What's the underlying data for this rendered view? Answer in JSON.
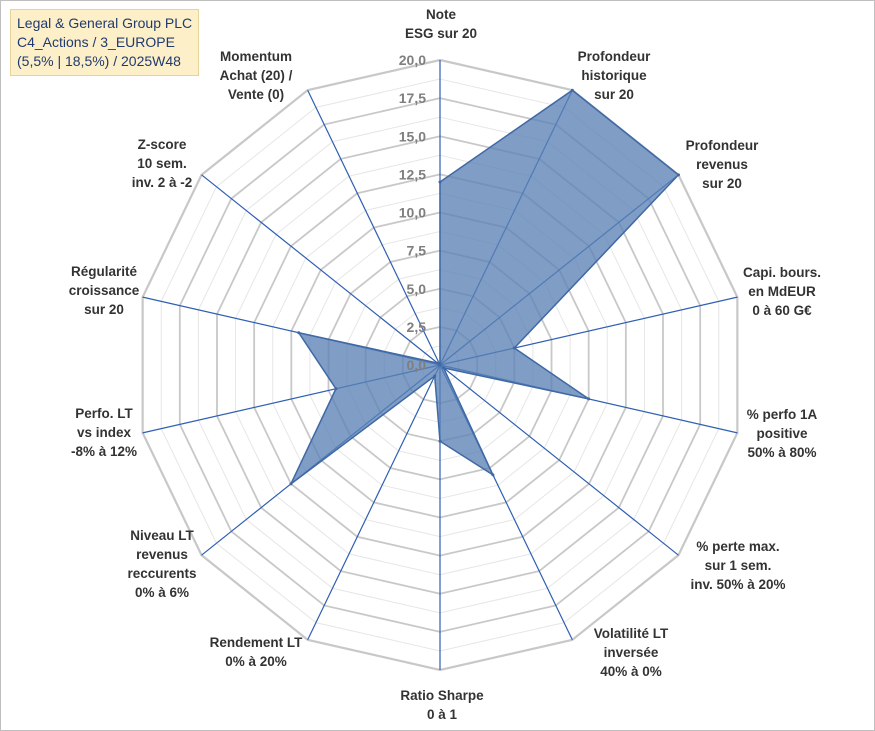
{
  "title": {
    "line1": "Legal & General Group PLC",
    "line2": "C4_Actions / 3_EUROPE",
    "line3": "(5,5% | 18,5%) / 2025W48"
  },
  "chart_data": {
    "type": "radar",
    "title": "Legal & General Group PLC",
    "rlim": [
      0,
      20
    ],
    "ticks": [
      "0,0",
      "2,5",
      "5,0",
      "7,5",
      "10,0",
      "12,5",
      "15,0",
      "17,5",
      "20,0"
    ],
    "tick_values": [
      0,
      2.5,
      5,
      7.5,
      10,
      12.5,
      15,
      17.5,
      20
    ],
    "grid": true,
    "colors": {
      "fill": "#5b82b5",
      "stroke": "#3f68a6",
      "spoke": "#2f5fb3",
      "grid_major": "#c8c8c8",
      "grid_minor": "#e6e6e6"
    },
    "axes": [
      {
        "lines": [
          "Note",
          "ESG sur 20"
        ]
      },
      {
        "lines": [
          "Profondeur",
          "historique",
          "sur 20"
        ]
      },
      {
        "lines": [
          "Profondeur",
          "revenus",
          "sur 20"
        ]
      },
      {
        "lines": [
          "Capi. bours.",
          "en MdEUR",
          "0 à 60 G€"
        ]
      },
      {
        "lines": [
          "% perfo 1A",
          "positive",
          "50% à 80%"
        ]
      },
      {
        "lines": [
          "% perte max.",
          "sur 1 sem.",
          "inv. 50% à 20%"
        ]
      },
      {
        "lines": [
          "Volatilité LT",
          "inversée",
          "40% à 0%"
        ]
      },
      {
        "lines": [
          "Ratio Sharpe",
          "0 à 1"
        ]
      },
      {
        "lines": [
          "Rendement LT",
          "0% à 20%"
        ]
      },
      {
        "lines": [
          "Niveau LT",
          "revenus",
          "reccurents",
          "0% à 6%"
        ]
      },
      {
        "lines": [
          "Perfo. LT",
          "vs index",
          "-8% à 12%"
        ]
      },
      {
        "lines": [
          "Régularité",
          "croissance",
          "sur 20"
        ]
      },
      {
        "lines": [
          "Z-score",
          "10 sem.",
          "inv. 2 à -2"
        ]
      },
      {
        "lines": [
          "Momentum",
          "Achat (20) /",
          "Vente (0)"
        ]
      }
    ],
    "values": [
      12,
      20,
      20,
      5,
      10,
      0.3,
      8,
      5,
      0.8,
      12.5,
      7,
      9.5,
      0.2,
      0
    ]
  }
}
